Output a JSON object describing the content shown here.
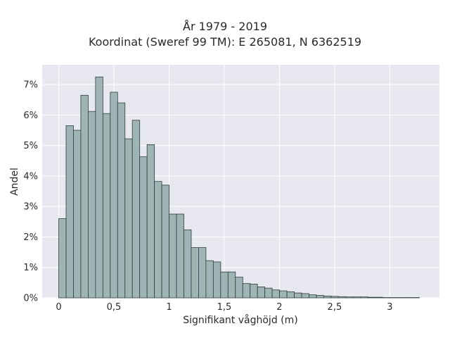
{
  "title_line1": "År 1979 - 2019",
  "title_line2": "Koordinat (Sweref 99 TM): E 265081, N 6362519",
  "chart_data": {
    "type": "bar",
    "title": "År 1979 - 2019\nKoordinat (Sweref 99 TM): E 265081, N 6362519",
    "xlabel": "Signifikant våghöjd (m)",
    "ylabel": "Andel",
    "bin_width": 0.0667,
    "bin_start": 0,
    "values": [
      2.6,
      5.65,
      5.5,
      6.65,
      6.12,
      7.25,
      6.05,
      6.75,
      6.4,
      5.22,
      5.83,
      4.63,
      5.03,
      3.82,
      3.7,
      2.75,
      2.75,
      2.23,
      1.65,
      1.65,
      1.22,
      1.18,
      0.85,
      0.85,
      0.68,
      0.47,
      0.45,
      0.36,
      0.32,
      0.26,
      0.23,
      0.2,
      0.16,
      0.14,
      0.1,
      0.08,
      0.06,
      0.05,
      0.04,
      0.03,
      0.03,
      0.03,
      0.02,
      0.02,
      0.01,
      0.01,
      0.01,
      0.01,
      0.01
    ],
    "xlim": [
      -0.15,
      3.45
    ],
    "ylim": [
      0,
      7.65
    ],
    "xticks": [
      0,
      0.5,
      1,
      1.5,
      2,
      2.5,
      3
    ],
    "xtick_labels": [
      "0",
      "0,5",
      "1",
      "1,5",
      "2",
      "2,5",
      "3"
    ],
    "yticks": [
      0,
      1,
      2,
      3,
      4,
      5,
      6,
      7
    ],
    "ytick_labels": [
      "0%",
      "1%",
      "2%",
      "3%",
      "4%",
      "5%",
      "6%",
      "7%"
    ],
    "grid": true,
    "colors": {
      "plot_bg": "#e8e8f0",
      "grid": "#ffffff",
      "bar_fill": "#9fb4b4",
      "bar_edge": "#2f3d3d"
    }
  }
}
